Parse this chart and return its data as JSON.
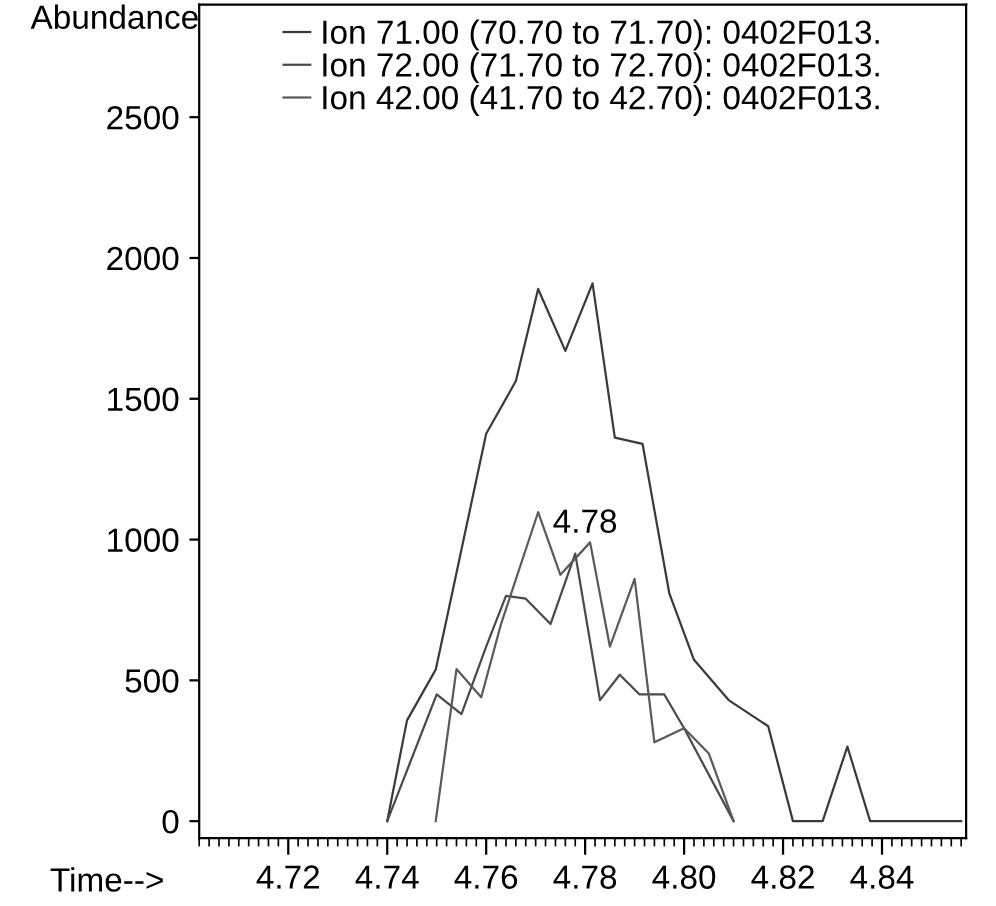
{
  "chart_data": {
    "type": "line",
    "xlabel": "Time-->",
    "ylabel": "Abundance",
    "xlim": [
      4.702,
      4.857
    ],
    "ylim": [
      -60,
      2900
    ],
    "xticks": [
      {
        "value": 4.72,
        "label": "4.72"
      },
      {
        "value": 4.74,
        "label": "4.74"
      },
      {
        "value": 4.76,
        "label": "4.76"
      },
      {
        "value": 4.78,
        "label": "4.78"
      },
      {
        "value": 4.8,
        "label": "4.80"
      },
      {
        "value": 4.82,
        "label": "4.82"
      },
      {
        "value": 4.84,
        "label": "4.84"
      }
    ],
    "yticks": [
      0,
      500,
      1000,
      1500,
      2000,
      2500
    ],
    "grid": false,
    "legend": "top",
    "marker": "none",
    "line_style": "solid",
    "series": [
      {
        "name": "Ion 71.00 (70.70 to 71.70): 0402F013.",
        "color": "#3a3a3a",
        "x": [
          4.74,
          4.744,
          4.7498,
          4.752,
          4.76,
          4.766,
          4.7705,
          4.776,
          4.7815,
          4.786,
          4.7916,
          4.797,
          4.802,
          4.809,
          4.817,
          4.822,
          4.828,
          4.833,
          4.8376,
          4.856
        ],
        "values": [
          0,
          358,
          538,
          717,
          1376,
          1563,
          1890,
          1670,
          1910,
          1362,
          1340,
          810,
          573,
          430,
          337,
          0,
          0,
          265,
          0,
          0
        ]
      },
      {
        "name": "Ion 72.00 (71.70 to 72.70): 0402F013.",
        "color": "#4a4a4a",
        "x": [
          4.74,
          4.75,
          4.755,
          4.76,
          4.764,
          4.768,
          4.773,
          4.778,
          4.783,
          4.787,
          4.791,
          4.796,
          4.8,
          4.81
        ],
        "values": [
          0,
          450,
          380,
          620,
          800,
          790,
          700,
          950,
          430,
          520,
          450,
          450,
          330,
          0
        ]
      },
      {
        "name": "Ion 42.00 (41.70 to 42.70): 0402F013.",
        "color": "#5a5a5a",
        "x": [
          4.7498,
          4.754,
          4.759,
          4.763,
          4.7705,
          4.775,
          4.781,
          4.785,
          4.79,
          4.794,
          4.8,
          4.805,
          4.81
        ],
        "values": [
          0,
          540,
          440,
          700,
          1097,
          875,
          990,
          620,
          860,
          280,
          330,
          240,
          0
        ]
      }
    ],
    "annotations": [
      {
        "text": "4.78",
        "x": 4.78,
        "y": 1000
      }
    ]
  }
}
